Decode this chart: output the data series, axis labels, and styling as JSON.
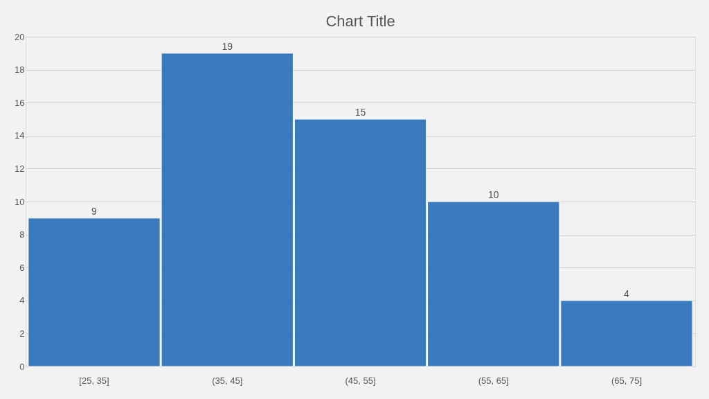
{
  "chart_data": {
    "type": "bar",
    "title": "Chart Title",
    "categories": [
      "[25, 35]",
      "(35, 45]",
      "(45, 55]",
      "(55, 65]",
      "(65, 75]"
    ],
    "values": [
      9,
      19,
      15,
      10,
      4
    ],
    "color": "#3b7bbd",
    "ylim": [
      0,
      20
    ],
    "yticks": [
      0,
      2,
      4,
      6,
      8,
      10,
      12,
      14,
      16,
      18,
      20
    ],
    "grid": "y",
    "data_labels": true
  }
}
